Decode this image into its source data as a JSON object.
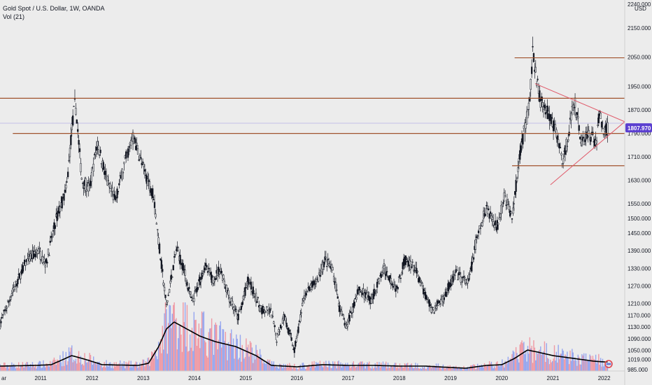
{
  "header": {
    "symbol_line": "Gold Spot / U.S. Dollar, 1W, OANDA",
    "indicator_line": "Vol (21)"
  },
  "price_axis": {
    "currency": "USD",
    "top_label": "2240.000",
    "current_price": "1807.970",
    "current_price_color": "#5b3fd0"
  },
  "colors": {
    "background": "#ececec",
    "candle": "#131722",
    "levels": "#a0522d",
    "triangle": "#e05a6a",
    "volume_up": "#8d9ff0",
    "volume_down": "#f0909c",
    "volume_ma": "#000000"
  },
  "chart_data": {
    "type": "candlestick",
    "title": "Gold Spot / U.S. Dollar, 1W, OANDA",
    "x_ticks": [
      "ar",
      "2011",
      "2012",
      "2013",
      "2014",
      "2015",
      "2016",
      "2017",
      "2018",
      "2019",
      "2020",
      "2021",
      "2022"
    ],
    "y_ticks": [
      2240,
      2150,
      2050,
      1950,
      1870,
      1790,
      1710,
      1630,
      1550,
      1500,
      1450,
      1390,
      1330,
      1270,
      1210,
      1170,
      1130,
      1090,
      1050,
      1019,
      985
    ],
    "y_tick_labels": [
      "2240.000",
      "2150.000",
      "2050.000",
      "1950.000",
      "1870.000",
      "1790.000",
      "1710.000",
      "1630.000",
      "1550.000",
      "1500.000",
      "1450.000",
      "1390.000",
      "1330.000",
      "1270.000",
      "1210.000",
      "1170.000",
      "1130.000",
      "1090.000",
      "1050.000",
      "1019.000",
      "985.000"
    ],
    "y_range": [
      980,
      2245
    ],
    "x_range": [
      2010.2,
      2022.4
    ],
    "current_price": 1807.97,
    "price_anchors": [
      [
        2010.2,
        1140
      ],
      [
        2010.4,
        1230
      ],
      [
        2010.7,
        1350
      ],
      [
        2010.95,
        1390
      ],
      [
        2011.1,
        1345
      ],
      [
        2011.3,
        1500
      ],
      [
        2011.5,
        1600
      ],
      [
        2011.6,
        1800
      ],
      [
        2011.67,
        1900
      ],
      [
        2011.8,
        1630
      ],
      [
        2011.95,
        1600
      ],
      [
        2012.1,
        1760
      ],
      [
        2012.3,
        1620
      ],
      [
        2012.45,
        1560
      ],
      [
        2012.65,
        1700
      ],
      [
        2012.8,
        1780
      ],
      [
        2013.0,
        1670
      ],
      [
        2013.2,
        1580
      ],
      [
        2013.3,
        1420
      ],
      [
        2013.45,
        1200
      ],
      [
        2013.55,
        1300
      ],
      [
        2013.65,
        1400
      ],
      [
        2013.8,
        1320
      ],
      [
        2013.95,
        1210
      ],
      [
        2014.2,
        1340
      ],
      [
        2014.35,
        1290
      ],
      [
        2014.5,
        1330
      ],
      [
        2014.7,
        1220
      ],
      [
        2014.85,
        1160
      ],
      [
        2015.05,
        1290
      ],
      [
        2015.3,
        1190
      ],
      [
        2015.5,
        1180
      ],
      [
        2015.6,
        1090
      ],
      [
        2015.75,
        1170
      ],
      [
        2015.95,
        1050
      ],
      [
        2016.15,
        1240
      ],
      [
        2016.4,
        1290
      ],
      [
        2016.55,
        1360
      ],
      [
        2016.7,
        1320
      ],
      [
        2016.85,
        1180
      ],
      [
        2016.97,
        1130
      ],
      [
        2017.2,
        1260
      ],
      [
        2017.45,
        1220
      ],
      [
        2017.7,
        1330
      ],
      [
        2017.95,
        1260
      ],
      [
        2018.1,
        1360
      ],
      [
        2018.3,
        1330
      ],
      [
        2018.5,
        1240
      ],
      [
        2018.65,
        1185
      ],
      [
        2018.85,
        1230
      ],
      [
        2019.1,
        1310
      ],
      [
        2019.35,
        1280
      ],
      [
        2019.5,
        1420
      ],
      [
        2019.7,
        1540
      ],
      [
        2019.9,
        1470
      ],
      [
        2020.05,
        1580
      ],
      [
        2020.2,
        1500
      ],
      [
        2020.35,
        1720
      ],
      [
        2020.55,
        1900
      ],
      [
        2020.6,
        2065
      ],
      [
        2020.75,
        1900
      ],
      [
        2020.9,
        1860
      ],
      [
        2021.05,
        1800
      ],
      [
        2021.2,
        1690
      ],
      [
        2021.35,
        1840
      ],
      [
        2021.42,
        1900
      ],
      [
        2021.55,
        1760
      ],
      [
        2021.7,
        1790
      ],
      [
        2021.85,
        1760
      ],
      [
        2021.9,
        1860
      ],
      [
        2022.0,
        1800
      ],
      [
        2022.07,
        1808
      ]
    ],
    "horizontal_levels": [
      {
        "price": 2048,
        "x_from": 2020.25,
        "x_to": 2022.4
      },
      {
        "price": 1910,
        "x_from": 2010.2,
        "x_to": 2022.4
      },
      {
        "price": 1790,
        "x_from": 2010.45,
        "x_to": 2022.4
      },
      {
        "price": 1680,
        "x_from": 2020.2,
        "x_to": 2022.4
      }
    ],
    "triangle_lines": [
      {
        "x1": 2020.65,
        "y1": 1960,
        "x2": 2022.4,
        "y2": 1830
      },
      {
        "x1": 2020.95,
        "y1": 1615,
        "x2": 2022.4,
        "y2": 1830
      }
    ],
    "volume": {
      "title": "Vol (21)",
      "ma_anchors": [
        [
          2010.2,
          0.07
        ],
        [
          2010.9,
          0.08
        ],
        [
          2011.2,
          0.09
        ],
        [
          2011.45,
          0.17
        ],
        [
          2011.6,
          0.22
        ],
        [
          2011.85,
          0.17
        ],
        [
          2012.2,
          0.09
        ],
        [
          2012.9,
          0.08
        ],
        [
          2013.1,
          0.11
        ],
        [
          2013.3,
          0.35
        ],
        [
          2013.45,
          0.6
        ],
        [
          2013.6,
          0.7
        ],
        [
          2013.8,
          0.62
        ],
        [
          2014.1,
          0.5
        ],
        [
          2014.4,
          0.42
        ],
        [
          2014.8,
          0.35
        ],
        [
          2015.2,
          0.22
        ],
        [
          2015.5,
          0.08
        ],
        [
          2016.0,
          0.06
        ],
        [
          2016.5,
          0.09
        ],
        [
          2017.0,
          0.08
        ],
        [
          2017.5,
          0.08
        ],
        [
          2018.0,
          0.07
        ],
        [
          2018.5,
          0.07
        ],
        [
          2019.0,
          0.05
        ],
        [
          2019.3,
          0.04
        ],
        [
          2019.7,
          0.08
        ],
        [
          2020.0,
          0.09
        ],
        [
          2020.25,
          0.18
        ],
        [
          2020.5,
          0.3
        ],
        [
          2020.7,
          0.27
        ],
        [
          2021.0,
          0.22
        ],
        [
          2021.5,
          0.17
        ],
        [
          2021.8,
          0.14
        ],
        [
          2022.0,
          0.13
        ],
        [
          2022.07,
          0.13
        ]
      ]
    }
  }
}
